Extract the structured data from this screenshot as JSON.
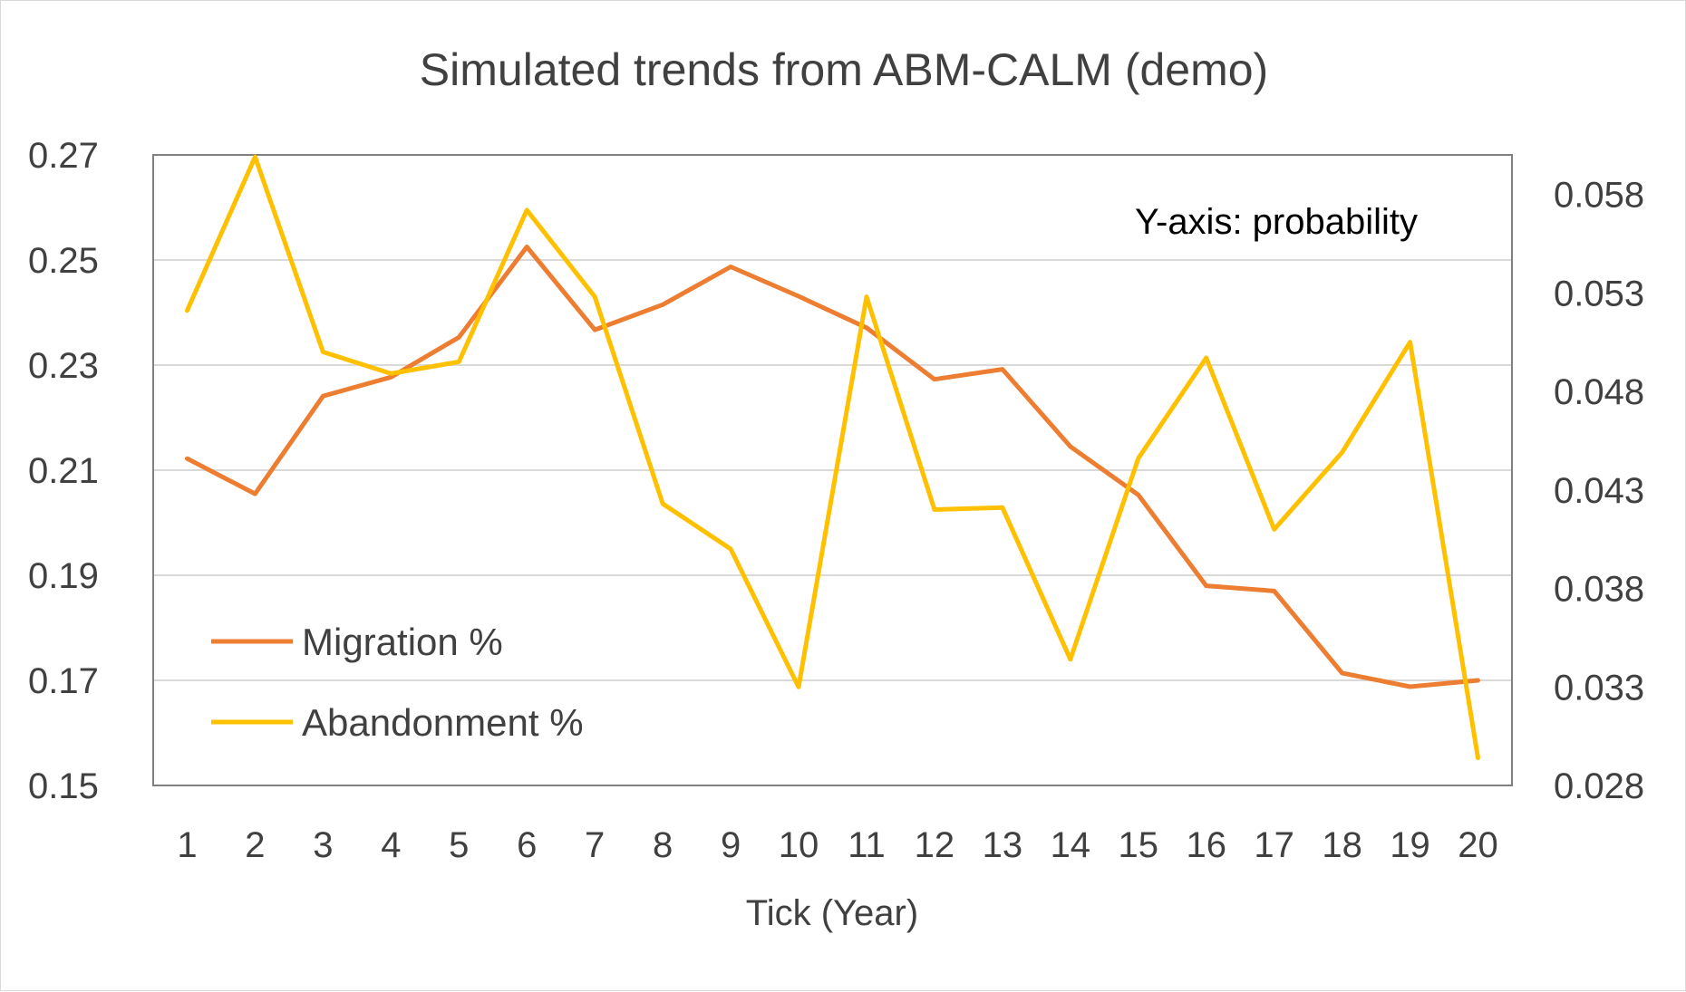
{
  "chart_data": {
    "type": "line",
    "title": "Simulated trends from ABM-CALM (demo)",
    "xlabel": "Tick (Year)",
    "ylabel": "",
    "annotation": "Y-axis: probability",
    "x": [
      "1",
      "2",
      "3",
      "4",
      "5",
      "6",
      "7",
      "8",
      "9",
      "10",
      "11",
      "12",
      "13",
      "14",
      "15",
      "16",
      "17",
      "18",
      "19",
      "20"
    ],
    "y_left": {
      "min": 0.15,
      "max": 0.27,
      "ticks": [
        "0.27",
        "0.25",
        "0.23",
        "0.21",
        "0.19",
        "0.17",
        "0.15"
      ],
      "tick_values": [
        0.27,
        0.25,
        0.23,
        0.21,
        0.19,
        0.17,
        0.15
      ]
    },
    "y_right": {
      "min": 0.028,
      "max": 0.06,
      "ticks": [
        "0.058",
        "0.053",
        "0.048",
        "0.043",
        "0.038",
        "0.033",
        "0.028"
      ],
      "tick_values": [
        0.058,
        0.053,
        0.048,
        0.043,
        0.038,
        0.033,
        0.028
      ]
    },
    "grid": true,
    "legend_position": "bottom-left",
    "series": [
      {
        "name": "Migration %",
        "axis": "left",
        "color": "#ED7D31",
        "values": [
          0.2122,
          0.2055,
          0.2241,
          0.2277,
          0.2353,
          0.2525,
          0.2367,
          0.2415,
          0.2487,
          0.2431,
          0.2371,
          0.2273,
          0.2292,
          0.2145,
          0.2053,
          0.188,
          0.187,
          0.1714,
          0.1688,
          0.17
        ]
      },
      {
        "name": "Abandonment %",
        "axis": "right",
        "color": "#FFC000",
        "values": [
          0.0521,
          0.0599,
          0.05,
          0.0489,
          0.0495,
          0.0572,
          0.0528,
          0.0423,
          0.04,
          0.033,
          0.0528,
          0.042,
          0.0421,
          0.0344,
          0.0446,
          0.0497,
          0.041,
          0.0449,
          0.0505,
          0.0294
        ]
      }
    ]
  }
}
